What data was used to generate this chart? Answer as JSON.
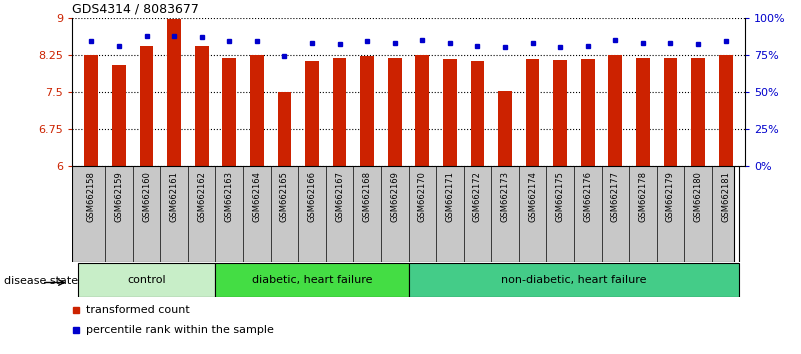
{
  "title": "GDS4314 / 8083677",
  "samples": [
    "GSM662158",
    "GSM662159",
    "GSM662160",
    "GSM662161",
    "GSM662162",
    "GSM662163",
    "GSM662164",
    "GSM662165",
    "GSM662166",
    "GSM662167",
    "GSM662168",
    "GSM662169",
    "GSM662170",
    "GSM662171",
    "GSM662172",
    "GSM662173",
    "GSM662174",
    "GSM662175",
    "GSM662176",
    "GSM662177",
    "GSM662178",
    "GSM662179",
    "GSM662180",
    "GSM662181"
  ],
  "bar_values": [
    8.25,
    8.05,
    8.42,
    8.98,
    8.42,
    8.19,
    8.24,
    7.5,
    8.13,
    8.19,
    8.22,
    8.19,
    8.24,
    8.17,
    8.12,
    7.52,
    8.16,
    8.14,
    8.16,
    8.24,
    8.19,
    8.19,
    8.18,
    8.24
  ],
  "percentile_values": [
    84,
    81,
    88,
    88,
    87,
    84,
    84,
    74,
    83,
    82,
    84,
    83,
    85,
    83,
    81,
    80,
    83,
    80,
    81,
    85,
    83,
    83,
    82,
    84
  ],
  "bar_color": "#cc2200",
  "dot_color": "#0000cc",
  "ylim_left": [
    6,
    9
  ],
  "ylim_right": [
    0,
    100
  ],
  "yticks_left": [
    6,
    6.75,
    7.5,
    8.25,
    9
  ],
  "yticks_right": [
    0,
    25,
    50,
    75,
    100
  ],
  "ytick_labels_right": [
    "0%",
    "25%",
    "50%",
    "75%",
    "100%"
  ],
  "groups": [
    {
      "label": "control",
      "start": 0,
      "end": 4
    },
    {
      "label": "diabetic, heart failure",
      "start": 5,
      "end": 11
    },
    {
      "label": "non-diabetic, heart failure",
      "start": 12,
      "end": 23
    }
  ],
  "group_colors": [
    "#b8e8b0",
    "#44cc44",
    "#44cc44"
  ],
  "legend_items": [
    {
      "label": "transformed count",
      "color": "#cc2200"
    },
    {
      "label": "percentile rank within the sample",
      "color": "#0000cc"
    }
  ],
  "disease_state_label": "disease state",
  "tick_bg_color": "#c8c8c8",
  "tick_line_color": "#888888"
}
